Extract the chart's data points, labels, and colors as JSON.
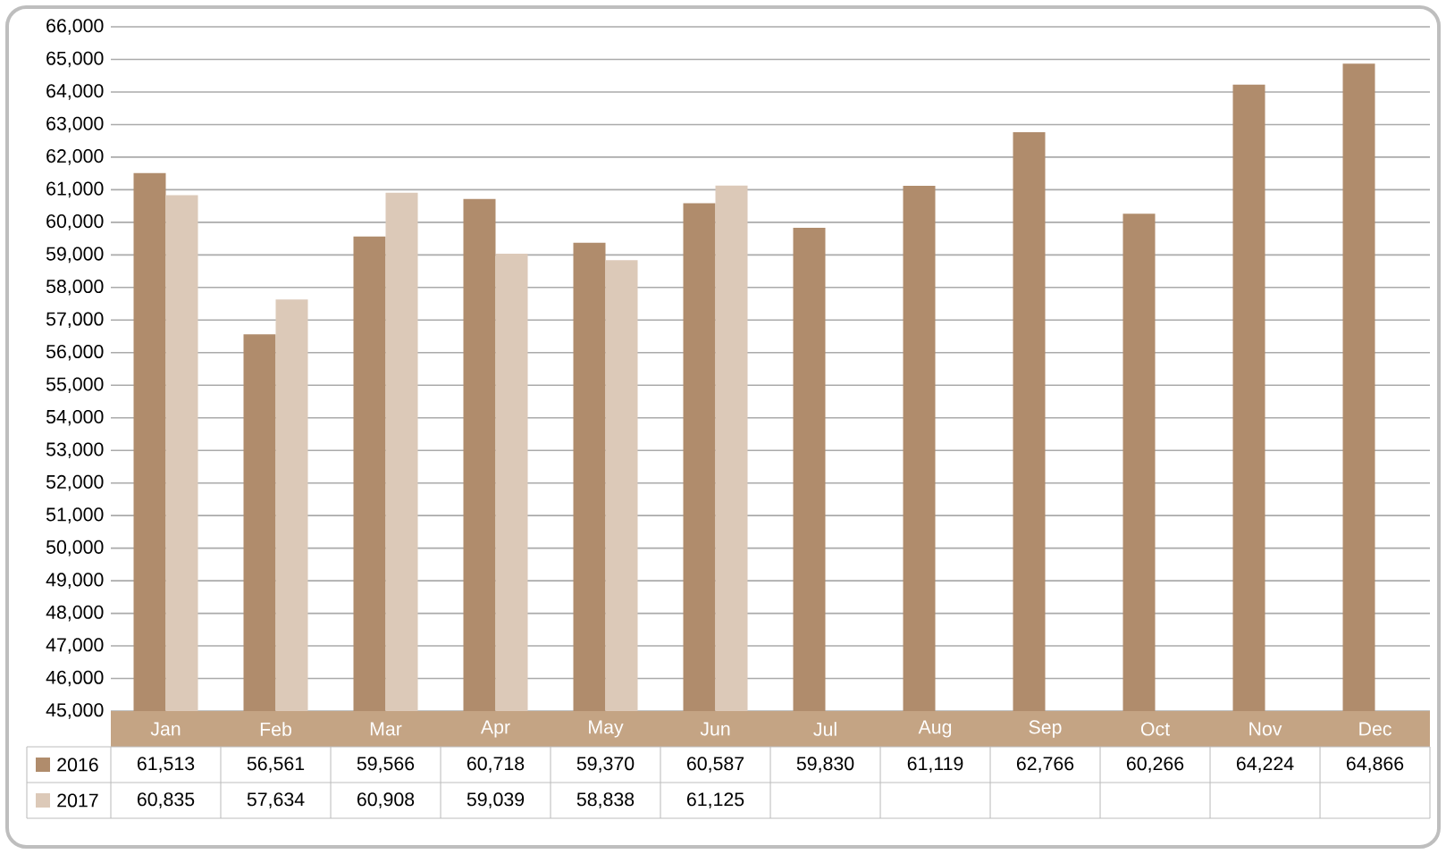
{
  "chart_data": {
    "type": "bar",
    "categories": [
      "Jan",
      "Feb",
      "Mar",
      "Apr",
      "May",
      "Jun",
      "Jul",
      "Aug",
      "Sep",
      "Oct",
      "Nov",
      "Dec"
    ],
    "series": [
      {
        "name": "2016",
        "color": "#b08c6c",
        "values": [
          61513,
          56561,
          59566,
          60718,
          59370,
          60587,
          59830,
          61119,
          62766,
          60266,
          64224,
          64866
        ],
        "value_labels": [
          "61,513",
          "56,561",
          "59,566",
          "60,718",
          "59,370",
          "60,587",
          "59,830",
          "61,119",
          "62,766",
          "60,266",
          "64,224",
          "64,866"
        ]
      },
      {
        "name": "2017",
        "color": "#dcc9b8",
        "values": [
          60835,
          57634,
          60908,
          59039,
          58838,
          61125,
          null,
          null,
          null,
          null,
          null,
          null
        ],
        "value_labels": [
          "60,835",
          "57,634",
          "60,908",
          "59,039",
          "58,838",
          "61,125",
          null,
          null,
          null,
          null,
          null,
          null
        ]
      }
    ],
    "ylim": [
      45000,
      66000
    ],
    "yticks": [
      {
        "value": 45000,
        "label": "45,000"
      },
      {
        "value": 46000,
        "label": "46,000"
      },
      {
        "value": 47000,
        "label": "47,000"
      },
      {
        "value": 48000,
        "label": "48,000"
      },
      {
        "value": 49000,
        "label": "49,000"
      },
      {
        "value": 50000,
        "label": "50,000"
      },
      {
        "value": 51000,
        "label": "51,000"
      },
      {
        "value": 52000,
        "label": "52,000"
      },
      {
        "value": 53000,
        "label": "53,000"
      },
      {
        "value": 54000,
        "label": "54,000"
      },
      {
        "value": 55000,
        "label": "55,000"
      },
      {
        "value": 56000,
        "label": "56,000"
      },
      {
        "value": 57000,
        "label": "57,000"
      },
      {
        "value": 58000,
        "label": "58,000"
      },
      {
        "value": 59000,
        "label": "59,000"
      },
      {
        "value": 60000,
        "label": "60,000"
      },
      {
        "value": 61000,
        "label": "61,000"
      },
      {
        "value": 62000,
        "label": "62,000"
      },
      {
        "value": 63000,
        "label": "63,000"
      },
      {
        "value": 64000,
        "label": "64,000"
      },
      {
        "value": 65000,
        "label": "65,000"
      },
      {
        "value": 66000,
        "label": "66,000"
      }
    ],
    "grid": "y",
    "legend": "bottom"
  }
}
